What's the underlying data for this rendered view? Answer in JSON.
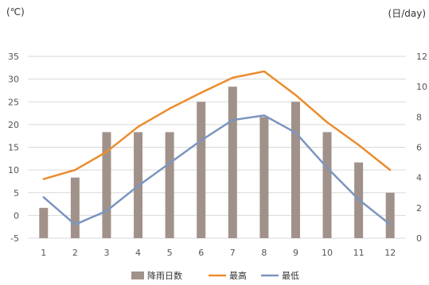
{
  "units": {
    "left": "(℃)",
    "right": "(日/day)"
  },
  "colors": {
    "bars": "#a0928a",
    "high": "#ec8c2c",
    "low": "#7b95bf",
    "grid": "#d9d9d9"
  },
  "chart_data": {
    "type": "bar",
    "categories": [
      "1",
      "2",
      "3",
      "4",
      "5",
      "6",
      "7",
      "8",
      "9",
      "10",
      "11",
      "12"
    ],
    "series": [
      {
        "name": "降雨日数",
        "type": "bar",
        "axis": "right",
        "values": [
          2,
          4,
          7,
          7,
          7,
          9,
          10,
          8,
          9,
          7,
          5,
          3
        ]
      },
      {
        "name": "最高",
        "type": "line",
        "axis": "left",
        "values": [
          8,
          10,
          14,
          19.5,
          23.5,
          27,
          30.3,
          31.7,
          26.5,
          20.5,
          15.5,
          10
        ]
      },
      {
        "name": "最低",
        "type": "line",
        "axis": "left",
        "values": [
          4,
          -2,
          1,
          6.5,
          11.5,
          16.5,
          21,
          22,
          18.2,
          10.5,
          3.5,
          -2
        ]
      }
    ],
    "y_left": {
      "ylim": [
        -5,
        35
      ],
      "ticks": [
        "-5",
        "0",
        "5",
        "10",
        "15",
        "20",
        "25",
        "30",
        "35"
      ]
    },
    "y_right": {
      "ylim": [
        0,
        12
      ],
      "ticks": [
        "0",
        "2",
        "4",
        "6",
        "8",
        "10",
        "12"
      ]
    },
    "grid": true,
    "legend_position": "bottom"
  }
}
